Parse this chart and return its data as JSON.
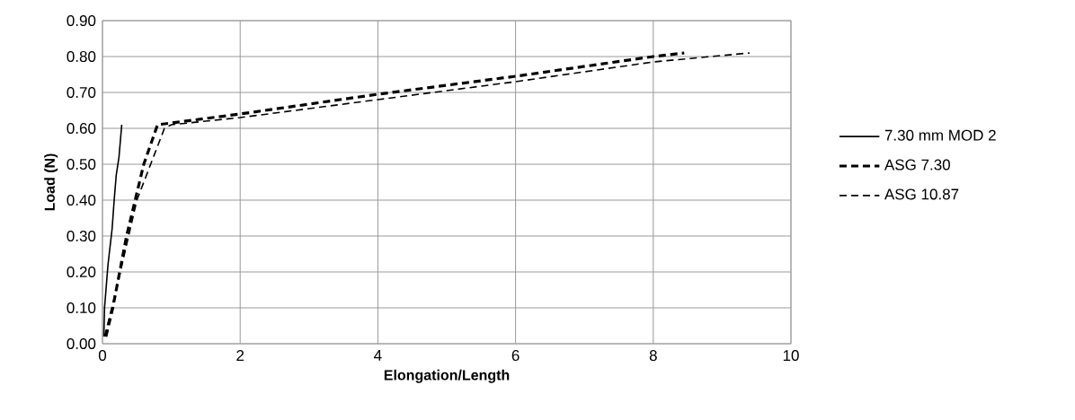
{
  "chart_data": {
    "type": "line",
    "xlabel": "Elongation/Length",
    "ylabel": "Load (N)",
    "xlim": [
      0,
      10
    ],
    "xticks": [
      0,
      2,
      4,
      6,
      8,
      10
    ],
    "ylim": [
      0,
      0.9
    ],
    "yticks": [
      {
        "value": 0,
        "label": "0.00"
      },
      {
        "value": 0.1,
        "label": "0.10"
      },
      {
        "value": 0.2,
        "label": "0.20"
      },
      {
        "value": 0.3,
        "label": "0.30"
      },
      {
        "value": 0.4,
        "label": "0.40"
      },
      {
        "value": 0.5,
        "label": "0.50"
      },
      {
        "value": 0.6,
        "label": "0.60"
      },
      {
        "value": 0.7,
        "label": "0.70"
      },
      {
        "value": 0.8,
        "label": "0.80"
      },
      {
        "value": 0.9,
        "label": "0.90"
      }
    ],
    "grid": true,
    "legend": "right",
    "marker": "none",
    "series": [
      {
        "name": "7.30 mm MOD 2",
        "color": "#000000",
        "line_style": "solid",
        "x": [
          0.02,
          0.03,
          0.08,
          0.14,
          0.17,
          0.2,
          0.24,
          0.28
        ],
        "values": [
          0.02,
          0.1,
          0.22,
          0.32,
          0.4,
          0.47,
          0.52,
          0.61
        ]
      },
      {
        "name": "ASG 7.30",
        "color": "#000000",
        "line_style": "dashed",
        "x": [
          0.05,
          0.15,
          0.35,
          0.6,
          0.8,
          2,
          4,
          6,
          8,
          8.45
        ],
        "values": [
          0.02,
          0.1,
          0.3,
          0.5,
          0.61,
          0.64,
          0.695,
          0.745,
          0.8,
          0.81
        ]
      },
      {
        "name": "ASG 10.87",
        "color": "#000000",
        "line_style": "dashed",
        "x": [
          0.03,
          0.2,
          0.5,
          0.9,
          1.0,
          2,
          4,
          6,
          8,
          9.4
        ],
        "values": [
          0.02,
          0.15,
          0.4,
          0.6,
          0.61,
          0.63,
          0.68,
          0.73,
          0.785,
          0.81
        ]
      }
    ]
  }
}
